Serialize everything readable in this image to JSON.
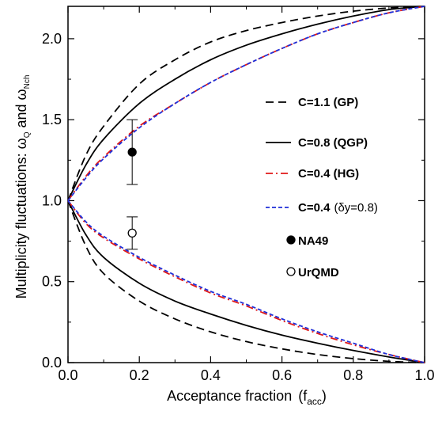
{
  "chart_data": {
    "type": "line",
    "xlabel": "Acceptance fraction",
    "xlabel_sym": "(f",
    "xlabel_sub": "acc",
    "xlabel_end": ")",
    "ylabel": "Multiplicity fluctuations: ω",
    "ylabel_sub1": "Q",
    "ylabel_mid": " and ω",
    "ylabel_sub2": "Nch",
    "xlim": [
      0.0,
      1.0
    ],
    "ylim": [
      0.0,
      2.2
    ],
    "x_ticks": [
      "0.0",
      "0.2",
      "0.4",
      "0.6",
      "0.8",
      "1.0"
    ],
    "x_tick_values": [
      0.0,
      0.2,
      0.4,
      0.6,
      0.8,
      1.0
    ],
    "y_ticks": [
      "0.0",
      "0.5",
      "1.0",
      "1.5",
      "2.0"
    ],
    "y_tick_values": [
      0.0,
      0.5,
      1.0,
      1.5,
      2.0
    ],
    "grid": false,
    "legend_position": "right",
    "x": [
      0.0,
      0.05,
      0.1,
      0.2,
      0.3,
      0.4,
      0.5,
      0.6,
      0.7,
      0.8,
      0.9,
      1.0
    ],
    "series": [
      {
        "name": "C=1.1 (GP)",
        "branch": "upper",
        "style": "dashed",
        "color": "#000000",
        "values": [
          1.0,
          1.28,
          1.46,
          1.72,
          1.87,
          1.98,
          2.05,
          2.1,
          2.14,
          2.17,
          2.19,
          2.2
        ]
      },
      {
        "name": "C=1.1 (GP)",
        "branch": "lower",
        "style": "dashed",
        "color": "#000000",
        "values": [
          1.0,
          0.72,
          0.55,
          0.38,
          0.27,
          0.19,
          0.13,
          0.085,
          0.05,
          0.025,
          0.008,
          0.0
        ]
      },
      {
        "name": "C=0.8 (QGP)",
        "branch": "upper",
        "style": "solid",
        "color": "#000000",
        "values": [
          1.0,
          1.22,
          1.38,
          1.6,
          1.75,
          1.87,
          1.96,
          2.03,
          2.09,
          2.14,
          2.18,
          2.2
        ]
      },
      {
        "name": "C=0.8 (QGP)",
        "branch": "lower",
        "style": "solid",
        "color": "#000000",
        "values": [
          1.0,
          0.79,
          0.65,
          0.49,
          0.38,
          0.3,
          0.23,
          0.17,
          0.12,
          0.075,
          0.035,
          0.0
        ]
      },
      {
        "name": "C=0.4 (HG)",
        "branch": "upper",
        "style": "dashdot",
        "color": "#e01818",
        "values": [
          1.0,
          1.15,
          1.27,
          1.46,
          1.6,
          1.73,
          1.84,
          1.94,
          2.03,
          2.1,
          2.16,
          2.2
        ]
      },
      {
        "name": "C=0.4 (HG)",
        "branch": "lower",
        "style": "dashdot",
        "color": "#e01818",
        "values": [
          1.0,
          0.86,
          0.77,
          0.64,
          0.53,
          0.43,
          0.35,
          0.26,
          0.18,
          0.11,
          0.05,
          0.0
        ]
      },
      {
        "name": "C=0.4",
        "name_suffix": "(δy=0.8)",
        "branch": "upper",
        "style": "dashed-fine",
        "color": "#1f2fd8",
        "values": [
          1.0,
          1.14,
          1.26,
          1.45,
          1.6,
          1.73,
          1.84,
          1.94,
          2.03,
          2.1,
          2.16,
          2.2
        ]
      },
      {
        "name": "C=0.4",
        "name_suffix": "(δy=0.8)",
        "branch": "lower",
        "style": "dashed-fine",
        "color": "#1f2fd8",
        "values": [
          1.0,
          0.87,
          0.78,
          0.65,
          0.54,
          0.44,
          0.36,
          0.27,
          0.19,
          0.12,
          0.05,
          0.0
        ]
      }
    ],
    "points": [
      {
        "name": "NA49",
        "marker": "filled-circle",
        "x": 0.18,
        "y": 1.3,
        "yerr_low": 1.1,
        "yerr_high": 1.5
      },
      {
        "name": "UrQMD",
        "marker": "open-circle",
        "x": 0.18,
        "y": 0.8,
        "yerr_low": 0.7,
        "yerr_high": 0.9
      }
    ],
    "legend": [
      {
        "label": "C=1.1 (GP)",
        "style": "dashed",
        "color": "#000000"
      },
      {
        "label": "C=0.8 (QGP)",
        "style": "solid",
        "color": "#000000"
      },
      {
        "label": "C=0.4 (HG)",
        "style": "dashdot",
        "color": "#e01818"
      },
      {
        "label": "C=0.4",
        "suffix": "(δy=0.8)",
        "style": "dashed-fine",
        "color": "#1f2fd8"
      },
      {
        "label": "NA49",
        "style": "filled-circle",
        "color": "#000000"
      },
      {
        "label": "UrQMD",
        "style": "open-circle",
        "color": "#000000"
      }
    ]
  }
}
